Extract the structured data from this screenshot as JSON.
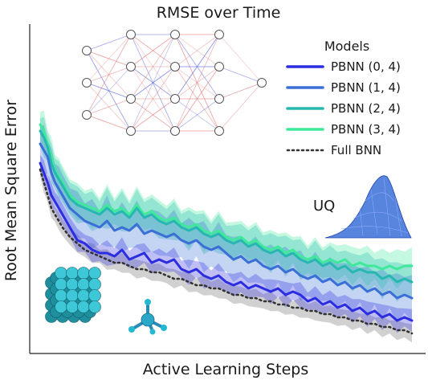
{
  "chart_data": {
    "type": "line",
    "title": "RMSE over Time",
    "xlabel": "Active Learning Steps",
    "ylabel": "Root Mean Square Error",
    "xlim": [
      0,
      100
    ],
    "ylim": [
      0,
      1
    ],
    "grid": false,
    "ticks_shown": false,
    "legend": {
      "title": "Models",
      "placement": "top-right"
    },
    "x": [
      0,
      1,
      2,
      3,
      4,
      5,
      6,
      8,
      10,
      12,
      14,
      16,
      18,
      20,
      22,
      24,
      26,
      28,
      30,
      32,
      34,
      36,
      38,
      40,
      42,
      44,
      46,
      48,
      50,
      52,
      54,
      56,
      58,
      60,
      62,
      64,
      66,
      68,
      70,
      72,
      74,
      76,
      78,
      80,
      82,
      84,
      86,
      88,
      90,
      92,
      94,
      96,
      98,
      100
    ],
    "series": [
      {
        "name": "PBNN (0, 4)",
        "color": "#2c2ce0",
        "values": [
          0.58,
          0.55,
          0.52,
          0.48,
          0.46,
          0.44,
          0.42,
          0.38,
          0.34,
          0.33,
          0.31,
          0.3,
          0.3,
          0.29,
          0.31,
          0.28,
          0.29,
          0.3,
          0.27,
          0.28,
          0.27,
          0.28,
          0.25,
          0.24,
          0.25,
          0.23,
          0.22,
          0.23,
          0.21,
          0.2,
          0.21,
          0.19,
          0.2,
          0.19,
          0.18,
          0.19,
          0.17,
          0.18,
          0.17,
          0.15,
          0.16,
          0.14,
          0.15,
          0.13,
          0.14,
          0.12,
          0.13,
          0.11,
          0.12,
          0.1,
          0.11,
          0.09,
          0.1,
          0.09
        ],
        "band": 0.025
      },
      {
        "name": "PBNN (1, 4)",
        "color": "#3a6fd6",
        "values": [
          0.64,
          0.62,
          0.6,
          0.55,
          0.52,
          0.5,
          0.48,
          0.44,
          0.42,
          0.4,
          0.39,
          0.38,
          0.4,
          0.37,
          0.38,
          0.37,
          0.39,
          0.36,
          0.37,
          0.36,
          0.35,
          0.36,
          0.34,
          0.33,
          0.34,
          0.32,
          0.31,
          0.32,
          0.3,
          0.28,
          0.29,
          0.27,
          0.28,
          0.26,
          0.25,
          0.26,
          0.24,
          0.25,
          0.23,
          0.22,
          0.23,
          0.21,
          0.22,
          0.2,
          0.21,
          0.19,
          0.2,
          0.18,
          0.19,
          0.17,
          0.18,
          0.16,
          0.17,
          0.16
        ],
        "band": 0.05
      },
      {
        "name": "PBNN (2, 4)",
        "color": "#26b8b0",
        "values": [
          0.68,
          0.66,
          0.63,
          0.58,
          0.55,
          0.53,
          0.51,
          0.47,
          0.45,
          0.44,
          0.43,
          0.42,
          0.44,
          0.42,
          0.43,
          0.41,
          0.44,
          0.41,
          0.42,
          0.4,
          0.39,
          0.4,
          0.38,
          0.37,
          0.38,
          0.36,
          0.35,
          0.36,
          0.34,
          0.33,
          0.34,
          0.32,
          0.33,
          0.31,
          0.3,
          0.31,
          0.29,
          0.3,
          0.28,
          0.27,
          0.28,
          0.26,
          0.27,
          0.25,
          0.26,
          0.24,
          0.25,
          0.24,
          0.24,
          0.22,
          0.23,
          0.21,
          0.22,
          0.21
        ],
        "band": 0.04
      },
      {
        "name": "PBNN (3, 4)",
        "color": "#3fe89a",
        "values": [
          0.7,
          0.68,
          0.64,
          0.6,
          0.56,
          0.54,
          0.52,
          0.48,
          0.46,
          0.45,
          0.44,
          0.43,
          0.45,
          0.43,
          0.44,
          0.42,
          0.45,
          0.42,
          0.43,
          0.41,
          0.4,
          0.41,
          0.39,
          0.38,
          0.39,
          0.37,
          0.36,
          0.37,
          0.35,
          0.34,
          0.35,
          0.33,
          0.34,
          0.32,
          0.31,
          0.32,
          0.3,
          0.31,
          0.29,
          0.28,
          0.29,
          0.27,
          0.28,
          0.27,
          0.28,
          0.26,
          0.27,
          0.26,
          0.26,
          0.25,
          0.26,
          0.25,
          0.26,
          0.26
        ],
        "band": 0.04
      },
      {
        "name": "Full BNN",
        "color": "#333333",
        "dashed": true,
        "values": [
          0.56,
          0.52,
          0.48,
          0.44,
          0.42,
          0.4,
          0.38,
          0.35,
          0.33,
          0.31,
          0.3,
          0.29,
          0.28,
          0.27,
          0.27,
          0.26,
          0.25,
          0.25,
          0.24,
          0.24,
          0.23,
          0.22,
          0.22,
          0.21,
          0.2,
          0.2,
          0.19,
          0.19,
          0.18,
          0.17,
          0.17,
          0.16,
          0.16,
          0.15,
          0.15,
          0.14,
          0.14,
          0.13,
          0.13,
          0.12,
          0.12,
          0.11,
          0.11,
          0.1,
          0.1,
          0.09,
          0.09,
          0.08,
          0.08,
          0.07,
          0.07,
          0.06,
          0.06,
          0.05
        ],
        "band": 0.02
      }
    ],
    "annotations": {
      "uq_label": "UQ"
    }
  }
}
